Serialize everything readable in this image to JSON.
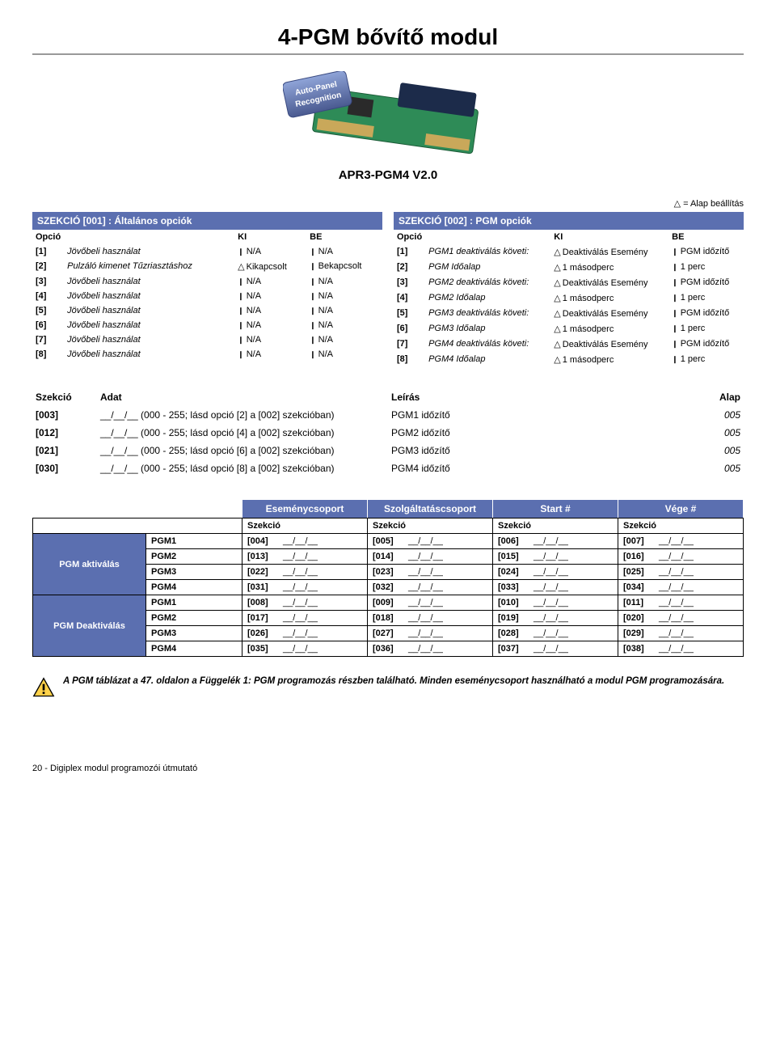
{
  "title": "4-PGM bővítő modul",
  "version": "APR3-PGM4 V2.0",
  "default_note": "△ = Alap beállítás",
  "left_section": {
    "header": "SZEKCIÓ [001] : Általános opciók",
    "cols": [
      "Opció",
      "",
      "KI",
      "BE"
    ],
    "rows": [
      {
        "idx": "[1]",
        "desc": "Jövőbeli használat",
        "ki": "N/A",
        "be": "N/A",
        "ki_m": "mk",
        "be_m": "mk"
      },
      {
        "idx": "[2]",
        "desc": "Pulzáló kimenet Tűzriasztáshoz",
        "ki": "Kikapcsolt",
        "be": "Bekapcsolt",
        "ki_m": "tri",
        "be_m": "mk"
      },
      {
        "idx": "[3]",
        "desc": "Jövőbeli használat",
        "ki": "N/A",
        "be": "N/A",
        "ki_m": "mk",
        "be_m": "mk"
      },
      {
        "idx": "[4]",
        "desc": "Jövőbeli használat",
        "ki": "N/A",
        "be": "N/A",
        "ki_m": "mk",
        "be_m": "mk"
      },
      {
        "idx": "[5]",
        "desc": "Jövőbeli használat",
        "ki": "N/A",
        "be": "N/A",
        "ki_m": "mk",
        "be_m": "mk"
      },
      {
        "idx": "[6]",
        "desc": "Jövőbeli használat",
        "ki": "N/A",
        "be": "N/A",
        "ki_m": "mk",
        "be_m": "mk"
      },
      {
        "idx": "[7]",
        "desc": "Jövőbeli használat",
        "ki": "N/A",
        "be": "N/A",
        "ki_m": "mk",
        "be_m": "mk"
      },
      {
        "idx": "[8]",
        "desc": "Jövőbeli használat",
        "ki": "N/A",
        "be": "N/A",
        "ki_m": "mk",
        "be_m": "mk"
      }
    ]
  },
  "right_section": {
    "header": "SZEKCIÓ [002] : PGM opciók",
    "cols": [
      "Opció",
      "",
      "KI",
      "BE"
    ],
    "rows": [
      {
        "idx": "[1]",
        "desc": "PGM1 deaktiválás követi:",
        "ki": "Deaktiválás Esemény",
        "be": "PGM időzítő",
        "ki_m": "tri",
        "be_m": "mk"
      },
      {
        "idx": "[2]",
        "desc": "PGM Időalap",
        "ki": "1 másodperc",
        "be": "1 perc",
        "ki_m": "tri",
        "be_m": "mk"
      },
      {
        "idx": "[3]",
        "desc": "PGM2 deaktiválás követi:",
        "ki": "Deaktiválás Esemény",
        "be": "PGM időzítő",
        "ki_m": "tri",
        "be_m": "mk"
      },
      {
        "idx": "[4]",
        "desc": "PGM2 Időalap",
        "ki": "1 másodperc",
        "be": "1 perc",
        "ki_m": "tri",
        "be_m": "mk"
      },
      {
        "idx": "[5]",
        "desc": "PGM3 deaktiválás követi:",
        "ki": "Deaktiválás Esemény",
        "be": "PGM időzítő",
        "ki_m": "tri",
        "be_m": "mk"
      },
      {
        "idx": "[6]",
        "desc": "PGM3 Időalap",
        "ki": "1 másodperc",
        "be": "1 perc",
        "ki_m": "tri",
        "be_m": "mk"
      },
      {
        "idx": "[7]",
        "desc": "PGM4 deaktiválás követi:",
        "ki": "Deaktiválás Esemény",
        "be": "PGM időzítő",
        "ki_m": "tri",
        "be_m": "mk"
      },
      {
        "idx": "[8]",
        "desc": "PGM4 Időalap",
        "ki": "1 másodperc",
        "be": "1 perc",
        "ki_m": "tri",
        "be_m": "mk"
      }
    ]
  },
  "mid_table": {
    "headers": [
      "Szekció",
      "Adat",
      "Leírás",
      "Alap"
    ],
    "rows": [
      {
        "sec": "[003]",
        "adat": "__/__/__ (000 - 255; lásd opció [2] a [002] szekcióban)",
        "leiras": "PGM1 időzítő",
        "alap": "005"
      },
      {
        "sec": "[012]",
        "adat": "__/__/__ (000 - 255; lásd opció [4] a [002] szekcióban)",
        "leiras": "PGM2 időzítő",
        "alap": "005"
      },
      {
        "sec": "[021]",
        "adat": "__/__/__ (000 - 255; lásd opció [6] a [002] szekcióban)",
        "leiras": "PGM3 időzítő",
        "alap": "005"
      },
      {
        "sec": "[030]",
        "adat": "__/__/__ (000 - 255; lásd opció [8] a [002] szekcióban)",
        "leiras": "PGM4 időzítő",
        "alap": "005"
      }
    ]
  },
  "event_table": {
    "blank": "__/__/__",
    "top_headers": [
      "Eseménycsoport",
      "Szolgáltatáscsoport",
      "Start #",
      "Vége #"
    ],
    "sub_header": "Szekció",
    "groups": [
      {
        "label": "PGM aktiválás",
        "rows": [
          {
            "pgm": "PGM1",
            "cells": [
              "[004]",
              "[005]",
              "[006]",
              "[007]"
            ]
          },
          {
            "pgm": "PGM2",
            "cells": [
              "[013]",
              "[014]",
              "[015]",
              "[016]"
            ]
          },
          {
            "pgm": "PGM3",
            "cells": [
              "[022]",
              "[023]",
              "[024]",
              "[025]"
            ]
          },
          {
            "pgm": "PGM4",
            "cells": [
              "[031]",
              "[032]",
              "[033]",
              "[034]"
            ]
          }
        ]
      },
      {
        "label": "PGM Deaktiválás",
        "rows": [
          {
            "pgm": "PGM1",
            "cells": [
              "[008]",
              "[009]",
              "[010]",
              "[011]"
            ]
          },
          {
            "pgm": "PGM2",
            "cells": [
              "[017]",
              "[018]",
              "[019]",
              "[020]"
            ]
          },
          {
            "pgm": "PGM3",
            "cells": [
              "[026]",
              "[027]",
              "[028]",
              "[029]"
            ]
          },
          {
            "pgm": "PGM4",
            "cells": [
              "[035]",
              "[036]",
              "[037]",
              "[038]"
            ]
          }
        ]
      }
    ]
  },
  "note": "A PGM táblázat a 47. oldalon a Függelék 1: PGM programozás részben található. Minden eseménycsoport használható a modul PGM programozására.",
  "footer": "20 -  Digiplex modul programozói útmutató"
}
